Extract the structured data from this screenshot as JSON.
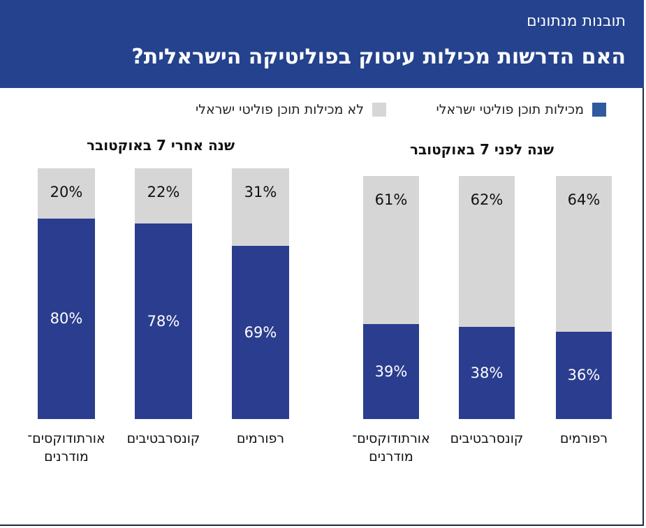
{
  "header": {
    "kicker": "תובנות מנתונים",
    "title": "האם הדרשות מכילות עיסוק בפוליטיקה הישראלית?"
  },
  "legend": {
    "contains": "מכילות תוכן פוליטי ישראלי",
    "not_contains": "לא מכילות תוכן פוליטי ישראלי"
  },
  "colors": {
    "contains": "#2b3d8f",
    "not_contains": "#d6d6d6",
    "legend_contains": "#2f5a9e",
    "header": "#24428e"
  },
  "chart_data": [
    {
      "type": "bar",
      "stacked": true,
      "title": "שנה לפני 7 באוקטובר",
      "categories": [
        "רפורמים",
        "קונסרבטיבים",
        "אורתודוקסים־\nמודרנים"
      ],
      "series": [
        {
          "name": "מכילות תוכן פוליטי ישראלי",
          "values": [
            36,
            38,
            39
          ],
          "labels": [
            "36%",
            "38%",
            "39%"
          ]
        },
        {
          "name": "לא מכילות תוכן פוליטי ישראלי",
          "values": [
            64,
            62,
            61
          ],
          "labels": [
            "64%",
            "62%",
            "61%"
          ]
        }
      ],
      "ylim": [
        0,
        100
      ]
    },
    {
      "type": "bar",
      "stacked": true,
      "title": "שנה אחרי 7 באוקטובר",
      "categories": [
        "רפורמים",
        "קונסרבטיבים",
        "אורתודוקסים־\nמודרנים"
      ],
      "series": [
        {
          "name": "מכילות תוכן פוליטי ישראלי",
          "values": [
            69,
            78,
            80
          ],
          "labels": [
            "69%",
            "78%",
            "80%"
          ]
        },
        {
          "name": "לא מכילות תוכן פוליטי ישראלי",
          "values": [
            31,
            22,
            20
          ],
          "labels": [
            "31%",
            "22%",
            "20%"
          ]
        }
      ],
      "ylim": [
        0,
        100
      ]
    }
  ]
}
